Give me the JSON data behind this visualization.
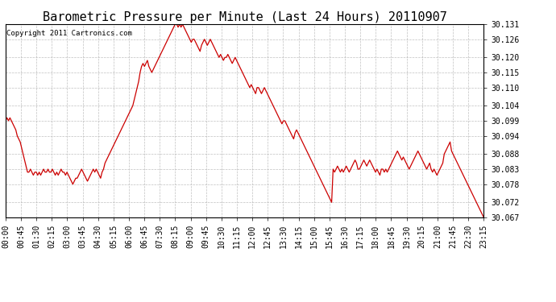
{
  "title": "Barometric Pressure per Minute (Last 24 Hours) 20110907",
  "copyright": "Copyright 2011 Cartronics.com",
  "line_color": "#cc0000",
  "background_color": "#ffffff",
  "grid_color": "#b0b0b0",
  "ylim": [
    30.067,
    30.131
  ],
  "yticks": [
    30.067,
    30.072,
    30.078,
    30.083,
    30.088,
    30.094,
    30.099,
    30.104,
    30.11,
    30.115,
    30.12,
    30.126,
    30.131
  ],
  "xtick_labels": [
    "00:00",
    "00:45",
    "01:30",
    "02:15",
    "03:00",
    "03:45",
    "04:30",
    "05:15",
    "06:00",
    "06:45",
    "07:30",
    "08:15",
    "09:00",
    "09:45",
    "10:30",
    "11:15",
    "12:00",
    "12:45",
    "13:30",
    "14:15",
    "15:00",
    "15:45",
    "16:30",
    "17:15",
    "18:00",
    "18:45",
    "19:30",
    "20:15",
    "21:00",
    "21:45",
    "22:30",
    "23:15"
  ],
  "title_fontsize": 11,
  "tick_fontsize": 7,
  "copyright_fontsize": 6.5,
  "pressure_data": [
    30.099,
    30.1,
    30.099,
    30.1,
    30.099,
    30.098,
    30.097,
    30.096,
    30.094,
    30.093,
    30.092,
    30.09,
    30.088,
    30.086,
    30.084,
    30.082,
    30.082,
    30.083,
    30.082,
    30.081,
    30.082,
    30.082,
    30.081,
    30.082,
    30.081,
    30.082,
    30.083,
    30.082,
    30.082,
    30.083,
    30.082,
    30.082,
    30.083,
    30.082,
    30.081,
    30.082,
    30.081,
    30.082,
    30.083,
    30.082,
    30.082,
    30.081,
    30.082,
    30.081,
    30.08,
    30.079,
    30.078,
    30.079,
    30.08,
    30.08,
    30.081,
    30.082,
    30.083,
    30.082,
    30.081,
    30.08,
    30.079,
    30.08,
    30.081,
    30.082,
    30.083,
    30.082,
    30.083,
    30.082,
    30.081,
    30.08,
    30.082,
    30.083,
    30.085,
    30.086,
    30.087,
    30.088,
    30.089,
    30.09,
    30.091,
    30.092,
    30.093,
    30.094,
    30.095,
    30.096,
    30.097,
    30.098,
    30.099,
    30.1,
    30.101,
    30.102,
    30.103,
    30.104,
    30.106,
    30.108,
    30.11,
    30.112,
    30.115,
    30.117,
    30.118,
    30.117,
    30.118,
    30.119,
    30.117,
    30.116,
    30.115,
    30.116,
    30.117,
    30.118,
    30.119,
    30.12,
    30.121,
    30.122,
    30.123,
    30.124,
    30.125,
    30.126,
    30.127,
    30.128,
    30.129,
    30.13,
    30.131,
    30.131,
    30.13,
    30.131,
    30.13,
    30.131,
    30.13,
    30.129,
    30.128,
    30.127,
    30.126,
    30.125,
    30.126,
    30.126,
    30.125,
    30.124,
    30.123,
    30.122,
    30.124,
    30.125,
    30.126,
    30.125,
    30.124,
    30.125,
    30.126,
    30.125,
    30.124,
    30.123,
    30.122,
    30.121,
    30.12,
    30.121,
    30.12,
    30.119,
    30.12,
    30.12,
    30.121,
    30.12,
    30.119,
    30.118,
    30.119,
    30.12,
    30.119,
    30.118,
    30.117,
    30.116,
    30.115,
    30.114,
    30.113,
    30.112,
    30.111,
    30.11,
    30.111,
    30.11,
    30.109,
    30.108,
    30.11,
    30.11,
    30.109,
    30.108,
    30.109,
    30.11,
    30.109,
    30.108,
    30.107,
    30.106,
    30.105,
    30.104,
    30.103,
    30.102,
    30.101,
    30.1,
    30.099,
    30.098,
    30.099,
    30.099,
    30.098,
    30.097,
    30.096,
    30.095,
    30.094,
    30.093,
    30.095,
    30.096,
    30.095,
    30.094,
    30.093,
    30.092,
    30.091,
    30.09,
    30.089,
    30.088,
    30.087,
    30.086,
    30.085,
    30.084,
    30.083,
    30.082,
    30.081,
    30.08,
    30.079,
    30.078,
    30.077,
    30.076,
    30.075,
    30.074,
    30.073,
    30.072,
    30.083,
    30.082,
    30.083,
    30.084,
    30.083,
    30.082,
    30.083,
    30.082,
    30.083,
    30.084,
    30.083,
    30.082,
    30.083,
    30.084,
    30.085,
    30.086,
    30.085,
    30.083,
    30.083,
    30.084,
    30.085,
    30.086,
    30.085,
    30.084,
    30.085,
    30.086,
    30.085,
    30.084,
    30.083,
    30.082,
    30.083,
    30.082,
    30.081,
    30.083,
    30.083,
    30.082,
    30.083,
    30.082,
    30.083,
    30.084,
    30.085,
    30.086,
    30.087,
    30.088,
    30.089,
    30.088,
    30.087,
    30.086,
    30.087,
    30.086,
    30.085,
    30.084,
    30.083,
    30.084,
    30.085,
    30.086,
    30.087,
    30.088,
    30.089,
    30.088,
    30.087,
    30.086,
    30.085,
    30.084,
    30.083,
    30.084,
    30.085,
    30.083,
    30.082,
    30.083,
    30.082,
    30.081,
    30.082,
    30.083,
    30.084,
    30.085,
    30.088,
    30.089,
    30.09,
    30.091,
    30.092,
    30.089,
    30.088,
    30.087,
    30.086,
    30.085,
    30.084,
    30.083,
    30.082,
    30.081,
    30.08,
    30.079,
    30.078,
    30.077,
    30.076,
    30.075,
    30.074,
    30.073,
    30.072,
    30.071,
    30.07,
    30.069,
    30.068,
    30.067
  ]
}
